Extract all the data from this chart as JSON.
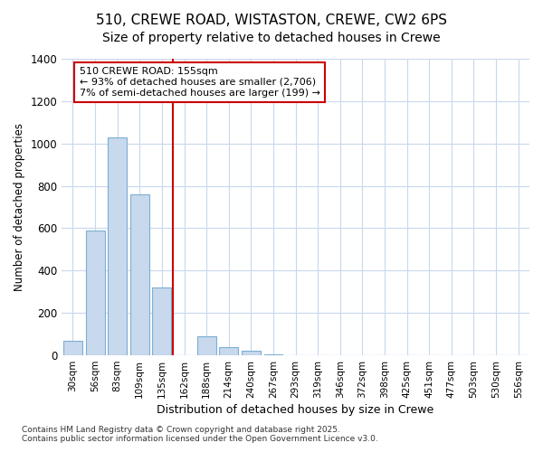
{
  "title_line1": "510, CREWE ROAD, WISTASTON, CREWE, CW2 6PS",
  "title_line2": "Size of property relative to detached houses in Crewe",
  "xlabel": "Distribution of detached houses by size in Crewe",
  "ylabel": "Number of detached properties",
  "categories": [
    "30sqm",
    "56sqm",
    "83sqm",
    "109sqm",
    "135sqm",
    "162sqm",
    "188sqm",
    "214sqm",
    "240sqm",
    "267sqm",
    "293sqm",
    "319sqm",
    "346sqm",
    "372sqm",
    "398sqm",
    "425sqm",
    "451sqm",
    "477sqm",
    "503sqm",
    "530sqm",
    "556sqm"
  ],
  "values": [
    68,
    590,
    1030,
    760,
    320,
    0,
    90,
    40,
    20,
    5,
    2,
    0,
    2,
    0,
    0,
    0,
    0,
    0,
    0,
    0,
    0
  ],
  "bar_color": "#c8d8ed",
  "bar_edge_color": "#7bafd4",
  "annotation_title": "510 CREWE ROAD: 155sqm",
  "annotation_line1": "← 93% of detached houses are smaller (2,706)",
  "annotation_line2": "7% of semi-detached houses are larger (199) →",
  "annotation_box_color": "#cc0000",
  "vline_index": 5,
  "ylim": [
    0,
    1400
  ],
  "yticks": [
    0,
    200,
    400,
    600,
    800,
    1000,
    1200,
    1400
  ],
  "footer_line1": "Contains HM Land Registry data © Crown copyright and database right 2025.",
  "footer_line2": "Contains public sector information licensed under the Open Government Licence v3.0.",
  "bg_color": "#ffffff",
  "plot_bg_color": "#ffffff",
  "grid_color": "#c8d8ed",
  "title_fontsize": 11,
  "subtitle_fontsize": 10
}
